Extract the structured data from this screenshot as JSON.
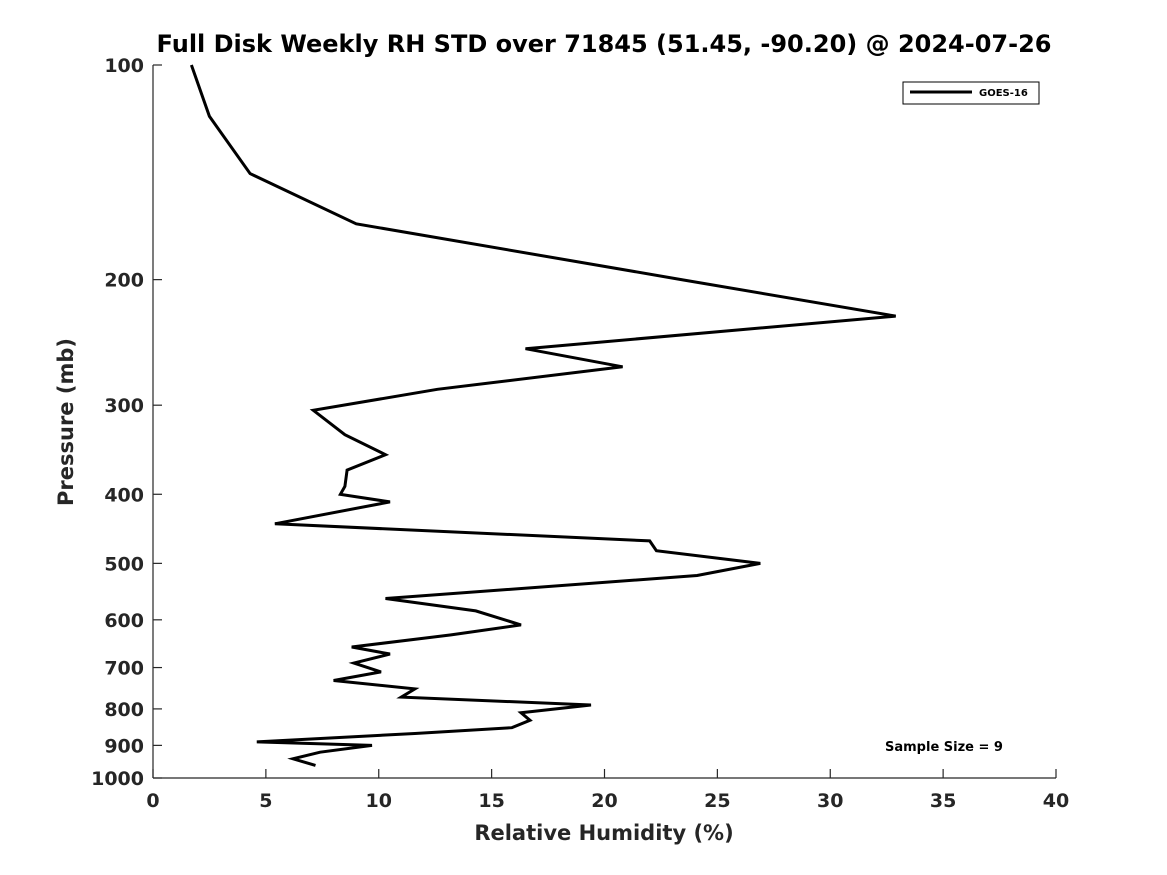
{
  "chart_data": {
    "type": "line",
    "title": "Full Disk Weekly RH STD over 71845 (51.45, -90.20) @ 2024-07-26",
    "xlabel": "Relative Humidity (%)",
    "ylabel": "Pressure (mb)",
    "xlim": [
      0,
      40
    ],
    "ylim": [
      100,
      1000
    ],
    "y_scale": "log",
    "y_reversed": true,
    "x_ticks": [
      0,
      5,
      10,
      15,
      20,
      25,
      30,
      35,
      40
    ],
    "y_ticks": [
      100,
      200,
      300,
      400,
      500,
      600,
      700,
      800,
      900,
      1000
    ],
    "grid": false,
    "legend_position": "top-right",
    "annotation": "Sample Size = 9",
    "series": [
      {
        "name": "GOES-16",
        "color": "#000000",
        "x": [
          1.7,
          2.5,
          4.3,
          9.0,
          23.4,
          32.9,
          16.5,
          20.8,
          12.6,
          7.1,
          8.5,
          10.3,
          8.6,
          8.5,
          8.3,
          10.5,
          5.4,
          22.0,
          22.3,
          26.9,
          24.1,
          10.3,
          14.3,
          16.3,
          13.2,
          8.8,
          10.5,
          8.9,
          10.1,
          8.0,
          11.6,
          11.0,
          19.4,
          16.3,
          16.7,
          15.9,
          11.6,
          4.6,
          9.7,
          7.4,
          6.2,
          7.2
        ],
        "y": [
          100,
          118,
          142,
          167,
          200,
          225,
          250,
          265,
          285,
          305,
          330,
          352,
          370,
          390,
          400,
          410,
          440,
          465,
          480,
          500,
          520,
          560,
          583,
          610,
          630,
          655,
          670,
          690,
          710,
          730,
          750,
          770,
          790,
          810,
          830,
          850,
          866,
          890,
          900,
          920,
          940,
          960
        ]
      }
    ]
  }
}
